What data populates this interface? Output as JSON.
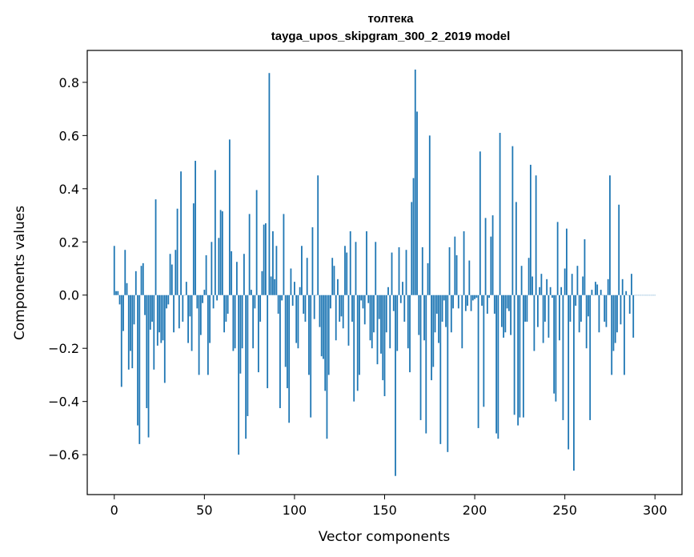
{
  "chart_data": {
    "type": "bar",
    "title": "толтека",
    "subtitle": "tayga_upos_skipgram_300_2_2019 model",
    "xlabel": "Vector components",
    "ylabel": "Components values",
    "xlim": [
      -15,
      315
    ],
    "ylim": [
      -0.75,
      0.92
    ],
    "xticks": [
      0,
      50,
      100,
      150,
      200,
      250,
      300
    ],
    "yticks": [
      -0.6,
      -0.4,
      -0.2,
      0.0,
      0.2,
      0.4,
      0.6,
      0.8
    ],
    "xtick_labels": [
      "0",
      "50",
      "100",
      "150",
      "200",
      "250",
      "300"
    ],
    "ytick_labels": [
      "−0.6",
      "−0.4",
      "−0.2",
      "0.0",
      "0.2",
      "0.4",
      "0.6",
      "0.8"
    ],
    "grid": false,
    "bar_color": "#1f77b4",
    "values": [
      0.185,
      0.015,
      0.015,
      -0.035,
      -0.345,
      -0.135,
      0.17,
      0.045,
      -0.28,
      -0.21,
      -0.275,
      -0.11,
      0.09,
      -0.49,
      -0.56,
      0.11,
      0.12,
      -0.075,
      -0.425,
      -0.535,
      -0.13,
      -0.1,
      -0.28,
      0.36,
      -0.19,
      -0.14,
      -0.18,
      -0.17,
      -0.33,
      -0.05,
      -0.035,
      0.155,
      0.115,
      -0.14,
      0.17,
      0.325,
      -0.125,
      0.465,
      -0.1,
      0.0,
      0.05,
      -0.18,
      -0.08,
      -0.21,
      0.345,
      0.505,
      -0.05,
      -0.3,
      -0.15,
      -0.03,
      0.02,
      0.15,
      -0.3,
      -0.18,
      0.2,
      -0.05,
      0.47,
      -0.02,
      0.215,
      0.32,
      0.315,
      -0.14,
      -0.1,
      -0.07,
      0.585,
      0.165,
      -0.21,
      -0.2,
      0.125,
      -0.6,
      -0.295,
      -0.2,
      0.155,
      -0.54,
      -0.455,
      0.305,
      0.02,
      -0.2,
      -0.05,
      0.395,
      -0.29,
      -0.1,
      0.09,
      0.265,
      0.27,
      -0.35,
      0.835,
      0.07,
      0.24,
      0.06,
      0.185,
      -0.07,
      -0.425,
      -0.02,
      0.305,
      -0.27,
      -0.35,
      -0.48,
      0.1,
      -0.04,
      0.05,
      -0.18,
      -0.2,
      0.03,
      0.185,
      -0.07,
      -0.1,
      0.14,
      -0.3,
      -0.46,
      0.255,
      -0.09,
      0.0,
      0.45,
      -0.12,
      -0.23,
      -0.24,
      -0.36,
      -0.54,
      -0.3,
      -0.05,
      0.14,
      0.11,
      -0.17,
      0.06,
      -0.1,
      -0.08,
      -0.125,
      0.185,
      0.16,
      -0.19,
      0.24,
      -0.1,
      -0.4,
      0.2,
      -0.36,
      -0.3,
      -0.02,
      -0.05,
      -0.11,
      0.24,
      -0.03,
      -0.17,
      -0.2,
      -0.14,
      0.2,
      -0.26,
      -0.09,
      -0.22,
      -0.32,
      -0.38,
      -0.14,
      0.03,
      -0.2,
      0.16,
      -0.06,
      -0.68,
      -0.21,
      0.18,
      -0.03,
      0.05,
      -0.1,
      0.17,
      -0.2,
      -0.29,
      0.35,
      0.44,
      0.848,
      0.69,
      -0.15,
      -0.47,
      0.18,
      -0.17,
      -0.52,
      0.12,
      0.6,
      -0.32,
      -0.27,
      -0.14,
      -0.07,
      -0.18,
      -0.56,
      -0.1,
      -0.02,
      -0.12,
      -0.59,
      0.18,
      -0.14,
      -0.05,
      0.22,
      0.15,
      -0.05,
      0.0,
      -0.2,
      0.24,
      -0.06,
      -0.04,
      0.13,
      -0.06,
      -0.02,
      -0.015,
      -0.01,
      -0.5,
      0.54,
      -0.04,
      -0.42,
      0.29,
      -0.07,
      -0.01,
      0.22,
      0.3,
      -0.07,
      -0.52,
      -0.54,
      0.61,
      -0.12,
      -0.16,
      -0.14,
      -0.05,
      -0.06,
      -0.15,
      0.56,
      -0.45,
      0.35,
      -0.49,
      -0.46,
      0.11,
      -0.46,
      -0.1,
      -0.1,
      0.14,
      0.49,
      0.07,
      -0.21,
      0.45,
      -0.12,
      0.03,
      0.08,
      -0.18,
      -0.1,
      0.06,
      -0.16,
      0.03,
      -0.01,
      -0.37,
      -0.4,
      0.275,
      -0.17,
      0.03,
      -0.47,
      0.1,
      0.25,
      -0.58,
      -0.1,
      0.08,
      -0.66,
      -0.04,
      0.11,
      -0.14,
      -0.1,
      0.07,
      0.21,
      -0.2,
      -0.08,
      -0.47,
      0.02,
      0.0,
      0.05,
      0.04,
      -0.14,
      0.02,
      0.0,
      -0.1,
      -0.12,
      0.06,
      0.45,
      -0.3,
      -0.21,
      -0.18,
      -0.14,
      0.34,
      -0.11,
      0.06,
      -0.3,
      0.015,
      0.0,
      -0.07,
      0.08,
      -0.16,
      0.0,
      0.0,
      0.0,
      0.0,
      0.0,
      0.0,
      0.0,
      0.0,
      0.0,
      0.0,
      0.0,
      0.0
    ]
  }
}
